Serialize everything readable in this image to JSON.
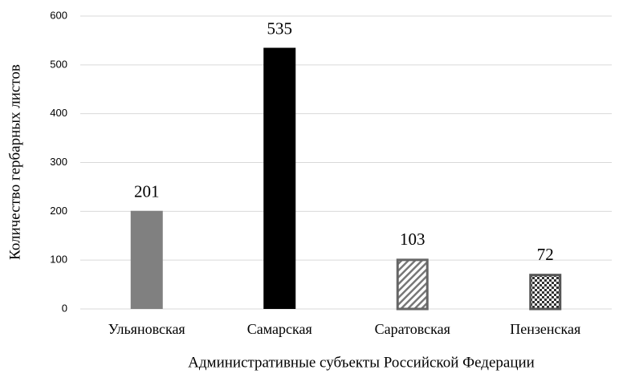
{
  "chart_data": {
    "type": "bar",
    "categories": [
      "Ульяновская",
      "Самарская",
      "Саратовская",
      "Пензенская"
    ],
    "values": [
      201,
      535,
      103,
      72
    ],
    "colors": [
      "#808080",
      "#000000",
      "#666666",
      "#555555"
    ],
    "patterns": [
      "solid",
      "solid",
      "diagonal",
      "checker"
    ],
    "xlabel": "Административные субъекты Российской Федерации",
    "ylabel": "Количество гербарных листов",
    "ylim": [
      0,
      600
    ],
    "yticks": [
      0,
      100,
      200,
      300,
      400,
      500,
      600
    ],
    "grid": true
  }
}
